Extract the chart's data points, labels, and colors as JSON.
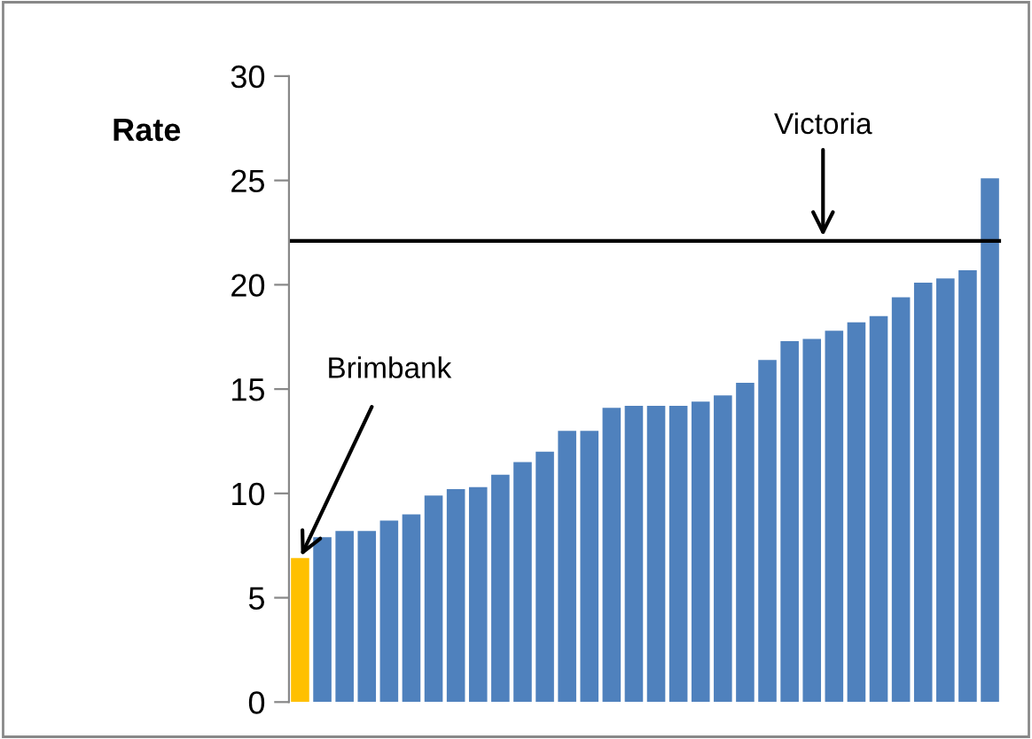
{
  "chart_data": {
    "type": "bar",
    "ylabel": "Rate",
    "categories": [
      null,
      null,
      null,
      null,
      null,
      null,
      null,
      null,
      null,
      null,
      null,
      null,
      null,
      null,
      null,
      null,
      null,
      null,
      null,
      null,
      null,
      null,
      null,
      null,
      null,
      null,
      null,
      null,
      null,
      null,
      null,
      null
    ],
    "values": [
      6.9,
      7.9,
      8.2,
      8.2,
      8.7,
      9.0,
      9.9,
      10.2,
      10.3,
      10.9,
      11.5,
      12.0,
      13.0,
      13.0,
      14.1,
      14.2,
      14.2,
      14.2,
      14.4,
      14.7,
      15.3,
      16.4,
      17.3,
      17.4,
      17.8,
      18.2,
      18.5,
      19.4,
      20.1,
      20.3,
      20.7,
      25.1
    ],
    "colors": [
      "#ffc000",
      "#4f81bd",
      "#4f81bd",
      "#4f81bd",
      "#4f81bd",
      "#4f81bd",
      "#4f81bd",
      "#4f81bd",
      "#4f81bd",
      "#4f81bd",
      "#4f81bd",
      "#4f81bd",
      "#4f81bd",
      "#4f81bd",
      "#4f81bd",
      "#4f81bd",
      "#4f81bd",
      "#4f81bd",
      "#4f81bd",
      "#4f81bd",
      "#4f81bd",
      "#4f81bd",
      "#4f81bd",
      "#4f81bd",
      "#4f81bd",
      "#4f81bd",
      "#4f81bd",
      "#4f81bd",
      "#4f81bd",
      "#4f81bd",
      "#4f81bd",
      "#4f81bd"
    ],
    "ylim": [
      0,
      30
    ],
    "yticks": [
      0,
      5,
      10,
      15,
      20,
      25,
      30
    ],
    "grid": false,
    "tick_labels": "y",
    "ref_lines": [
      {
        "axis": "y",
        "value": 22.1,
        "label": "Victoria",
        "color": "#000000"
      }
    ],
    "annotations": [
      "Brimbank"
    ]
  }
}
